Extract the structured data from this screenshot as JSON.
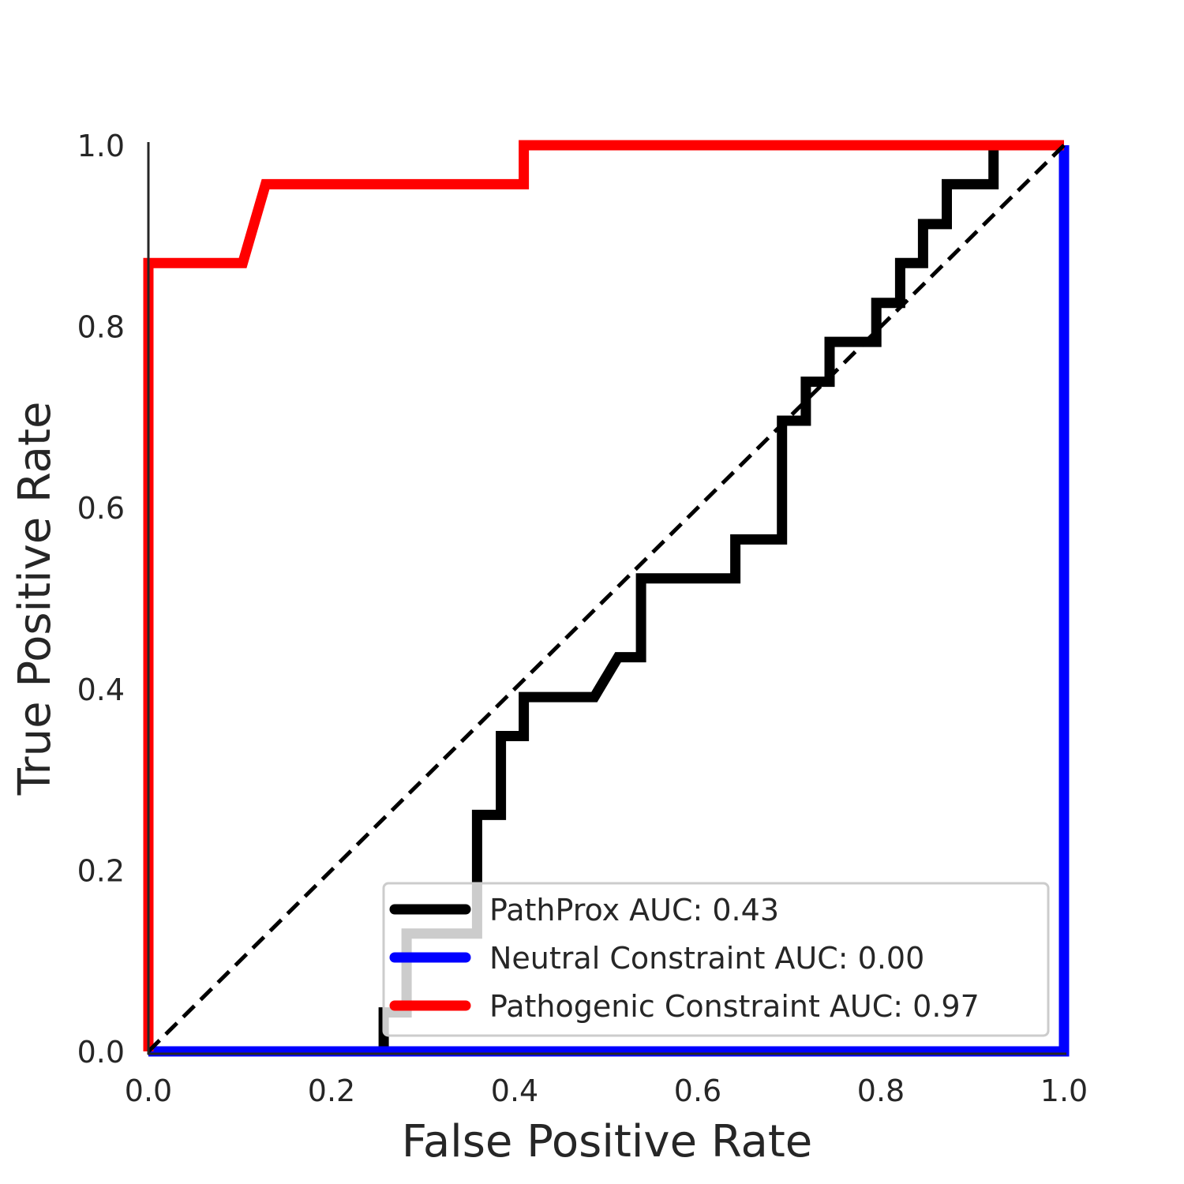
{
  "chart_data": {
    "type": "line",
    "title": "",
    "xlabel": "False Positive Rate",
    "ylabel": "True Positive Rate",
    "xlim": [
      0.0,
      1.0
    ],
    "ylim": [
      0.0,
      1.0
    ],
    "xticks": [
      "0.0",
      "0.2",
      "0.4",
      "0.6",
      "0.8",
      "1.0"
    ],
    "yticks": [
      "0.0",
      "0.2",
      "0.4",
      "0.6",
      "0.8",
      "1.0"
    ],
    "grid": false,
    "legend_position": "bottom-right",
    "diagonal": {
      "x": [
        0,
        1
      ],
      "y": [
        0,
        1
      ],
      "color": "#000000",
      "style": "dashed"
    },
    "series": [
      {
        "name": "PathProx AUC:  0.43",
        "color": "#000000",
        "x": [
          0.257,
          0.257,
          0.282,
          0.282,
          0.359,
          0.359,
          0.385,
          0.385,
          0.41,
          0.41,
          0.487,
          0.513,
          0.538,
          0.538,
          0.641,
          0.641,
          0.692,
          0.692,
          0.718,
          0.718,
          0.744,
          0.744,
          0.795,
          0.795,
          0.821,
          0.821,
          0.846,
          0.846,
          0.872,
          0.872,
          0.923,
          0.923
        ],
        "y": [
          0.0,
          0.043,
          0.043,
          0.13,
          0.13,
          0.261,
          0.261,
          0.348,
          0.348,
          0.391,
          0.391,
          0.435,
          0.435,
          0.522,
          0.522,
          0.565,
          0.565,
          0.696,
          0.696,
          0.739,
          0.739,
          0.783,
          0.783,
          0.826,
          0.826,
          0.87,
          0.87,
          0.913,
          0.913,
          0.957,
          0.957,
          1.0
        ]
      },
      {
        "name": "Neutral Constraint AUC:  0.00",
        "color": "#0000ff",
        "x": [
          0.0,
          1.0,
          1.0
        ],
        "y": [
          0.0,
          0.0,
          1.0
        ]
      },
      {
        "name": "Pathogenic Constraint AUC:  0.97",
        "color": "#ff0000",
        "x": [
          0.0,
          0.0,
          0.103,
          0.128,
          0.41,
          0.41,
          1.0
        ],
        "y": [
          0.0,
          0.87,
          0.87,
          0.957,
          0.957,
          1.0,
          1.0
        ]
      }
    ]
  }
}
